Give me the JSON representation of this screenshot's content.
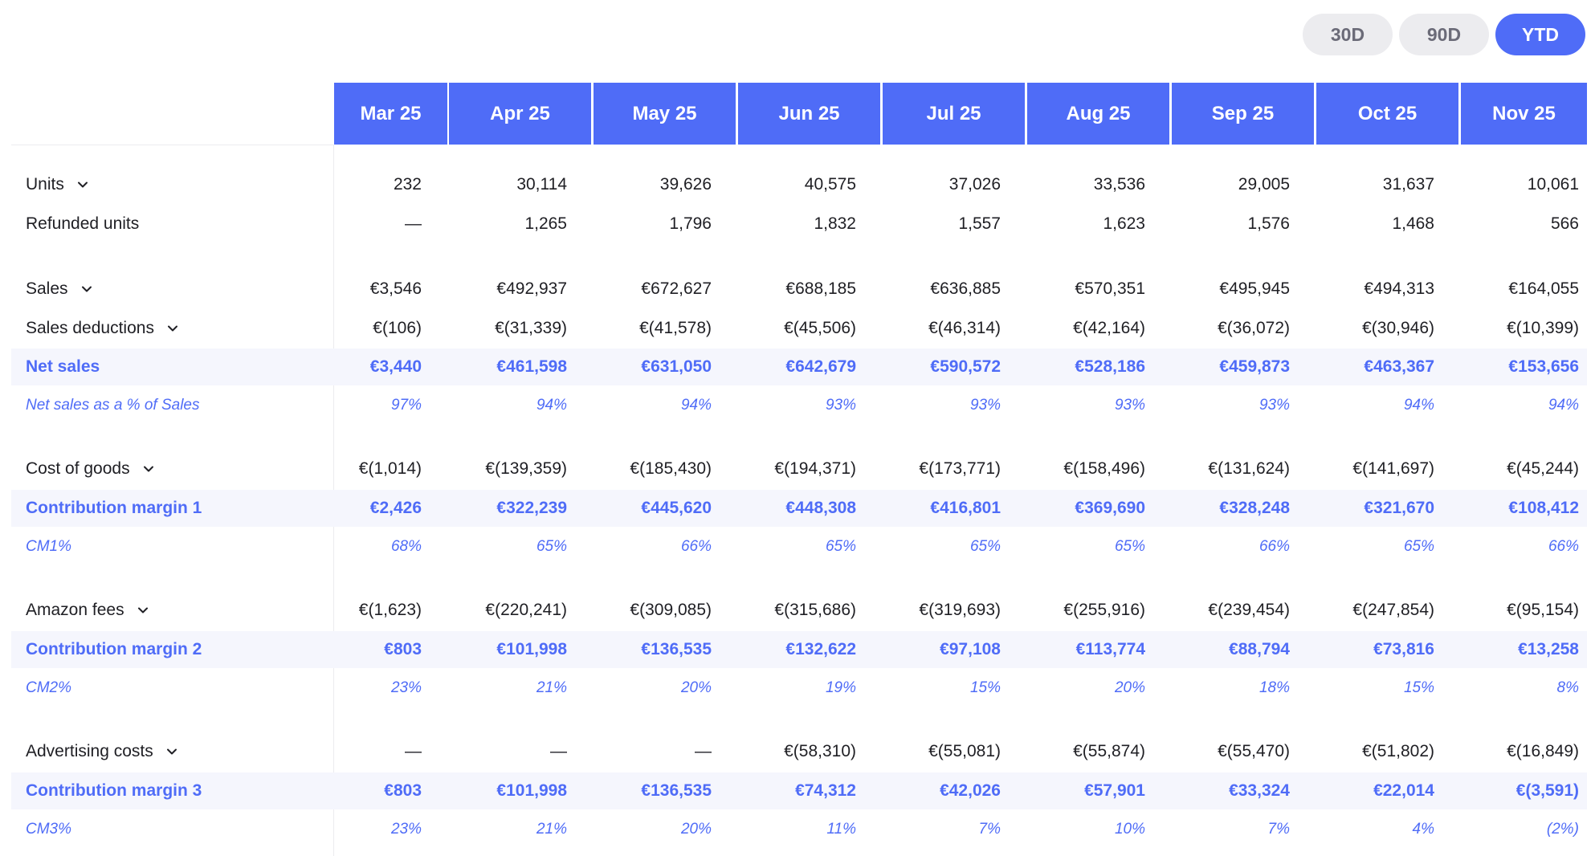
{
  "periods": [
    {
      "label": "30D",
      "active": false
    },
    {
      "label": "90D",
      "active": false
    },
    {
      "label": "YTD",
      "active": true
    }
  ],
  "months": [
    "Mar 25",
    "Apr 25",
    "May 25",
    "Jun 25",
    "Jul 25",
    "Aug 25",
    "Sep 25",
    "Oct 25",
    "Nov 25"
  ],
  "rows": [
    {
      "label": "Units",
      "style": "normal",
      "expandable": true,
      "values": [
        "232",
        "30,114",
        "39,626",
        "40,575",
        "37,026",
        "33,536",
        "29,005",
        "31,637",
        "10,061"
      ]
    },
    {
      "label": "Refunded units",
      "style": "normal",
      "expandable": false,
      "values": [
        "—",
        "1,265",
        "1,796",
        "1,832",
        "1,557",
        "1,623",
        "1,576",
        "1,468",
        "566"
      ]
    },
    {
      "label": "Sales",
      "style": "normal",
      "expandable": true,
      "values": [
        "€3,546",
        "€492,937",
        "€672,627",
        "€688,185",
        "€636,885",
        "€570,351",
        "€495,945",
        "€494,313",
        "€164,055"
      ]
    },
    {
      "label": "Sales deductions",
      "style": "normal",
      "expandable": true,
      "values": [
        "€(106)",
        "€(31,339)",
        "€(41,578)",
        "€(45,506)",
        "€(46,314)",
        "€(42,164)",
        "€(36,072)",
        "€(30,946)",
        "€(10,399)"
      ]
    },
    {
      "label": "Net sales",
      "style": "highlight",
      "expandable": false,
      "values": [
        "€3,440",
        "€461,598",
        "€631,050",
        "€642,679",
        "€590,572",
        "€528,186",
        "€459,873",
        "€463,367",
        "€153,656"
      ]
    },
    {
      "label": "Net sales as a % of Sales",
      "style": "percent",
      "expandable": false,
      "values": [
        "97%",
        "94%",
        "94%",
        "93%",
        "93%",
        "93%",
        "93%",
        "94%",
        "94%"
      ]
    },
    {
      "label": "Cost of goods",
      "style": "normal",
      "expandable": true,
      "values": [
        "€(1,014)",
        "€(139,359)",
        "€(185,430)",
        "€(194,371)",
        "€(173,771)",
        "€(158,496)",
        "€(131,624)",
        "€(141,697)",
        "€(45,244)"
      ]
    },
    {
      "label": "Contribution margin 1",
      "style": "highlight",
      "expandable": false,
      "values": [
        "€2,426",
        "€322,239",
        "€445,620",
        "€448,308",
        "€416,801",
        "€369,690",
        "€328,248",
        "€321,670",
        "€108,412"
      ]
    },
    {
      "label": "CM1%",
      "style": "percent",
      "expandable": false,
      "values": [
        "68%",
        "65%",
        "66%",
        "65%",
        "65%",
        "65%",
        "66%",
        "65%",
        "66%"
      ]
    },
    {
      "label": "Amazon fees",
      "style": "normal",
      "expandable": true,
      "values": [
        "€(1,623)",
        "€(220,241)",
        "€(309,085)",
        "€(315,686)",
        "€(319,693)",
        "€(255,916)",
        "€(239,454)",
        "€(247,854)",
        "€(95,154)"
      ]
    },
    {
      "label": "Contribution margin 2",
      "style": "highlight",
      "expandable": false,
      "values": [
        "€803",
        "€101,998",
        "€136,535",
        "€132,622",
        "€97,108",
        "€113,774",
        "€88,794",
        "€73,816",
        "€13,258"
      ]
    },
    {
      "label": "CM2%",
      "style": "percent",
      "expandable": false,
      "values": [
        "23%",
        "21%",
        "20%",
        "19%",
        "15%",
        "20%",
        "18%",
        "15%",
        "8%"
      ]
    },
    {
      "label": "Advertising costs",
      "style": "normal",
      "expandable": true,
      "values": [
        "—",
        "—",
        "—",
        "€(58,310)",
        "€(55,081)",
        "€(55,874)",
        "€(55,470)",
        "€(51,802)",
        "€(16,849)"
      ]
    },
    {
      "label": "Contribution margin 3",
      "style": "highlight",
      "expandable": false,
      "values": [
        "€803",
        "€101,998",
        "€136,535",
        "€74,312",
        "€42,026",
        "€57,901",
        "€33,324",
        "€22,014",
        "€(3,591)"
      ]
    },
    {
      "label": "CM3%",
      "style": "percent",
      "expandable": false,
      "values": [
        "23%",
        "21%",
        "20%",
        "11%",
        "7%",
        "10%",
        "7%",
        "4%",
        "(2%)"
      ]
    }
  ],
  "colors": {
    "accent": "#4f6cf7",
    "highlight_row": "#f5f6fd",
    "toggle_off": "#ececef"
  }
}
